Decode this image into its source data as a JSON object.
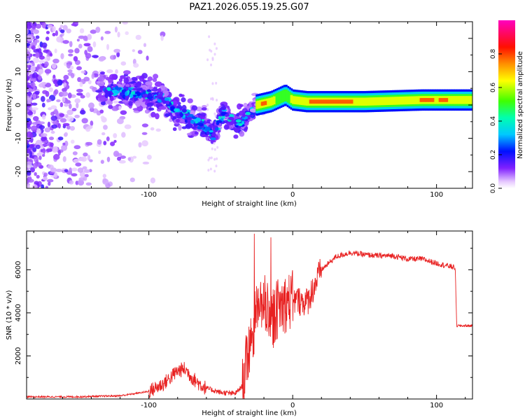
{
  "title": "PAZ1.2026.055.19.25.G07",
  "chart_data": [
    {
      "type": "heatmap",
      "title": "PAZ1.2026.055.19.25.G07",
      "xlabel": "Height of straight line (km)",
      "ylabel": "Frequency (Hz)",
      "xlim": [
        -185,
        125
      ],
      "ylim": [
        -25,
        25
      ],
      "xticks": [
        -100,
        0,
        100
      ],
      "yticks": [
        -20,
        -10,
        0,
        10,
        20
      ],
      "colorbar": {
        "label": "Normalized spectral amplitude",
        "range": [
          0,
          1
        ],
        "ticks": [
          0.0,
          0.2,
          0.4,
          0.6,
          0.8
        ],
        "colormap": "rainbow (violet-blue-cyan-green-yellow-red-magenta)"
      },
      "ridge": [
        {
          "x": -120,
          "freq": 4
        },
        {
          "x": -100,
          "freq": 3
        },
        {
          "x": -90,
          "freq": 2
        },
        {
          "x": -80,
          "freq": -2
        },
        {
          "x": -70,
          "freq": -4
        },
        {
          "x": -62,
          "freq": -6
        },
        {
          "x": -55,
          "freq": -9
        },
        {
          "x": -48,
          "freq": -2
        },
        {
          "x": -40,
          "freq": -6
        },
        {
          "x": -30,
          "freq": -3
        },
        {
          "x": -25,
          "freq": 0
        },
        {
          "x": -15,
          "freq": 1
        },
        {
          "x": -5,
          "freq": 3
        },
        {
          "x": 0,
          "freq": 1.5
        },
        {
          "x": 10,
          "freq": 1
        },
        {
          "x": 50,
          "freq": 1
        },
        {
          "x": 90,
          "freq": 1.5
        },
        {
          "x": 125,
          "freq": 1.5
        }
      ]
    },
    {
      "type": "line",
      "xlabel": "Height of straight line (km)",
      "ylabel": "SNR (10 * v/v)",
      "xlim": [
        -185,
        125
      ],
      "ylim": [
        0,
        7800
      ],
      "xticks": [
        -100,
        0,
        100
      ],
      "yticks": [
        2000,
        4000,
        6000
      ],
      "series": [
        {
          "name": "SNR",
          "color": "#e82020",
          "x": [
            -185,
            -150,
            -120,
            -100,
            -90,
            -80,
            -75,
            -70,
            -65,
            -60,
            -50,
            -40,
            -35,
            -30,
            -25,
            -20,
            -15,
            -10,
            0,
            10,
            20,
            30,
            40,
            50,
            60,
            70,
            80,
            90,
            100,
            110,
            113,
            114,
            125
          ],
          "y": [
            100,
            100,
            150,
            350,
            700,
            1300,
            1400,
            1000,
            700,
            500,
            300,
            250,
            600,
            2500,
            4000,
            4500,
            3500,
            4300,
            4600,
            4500,
            6000,
            6600,
            6800,
            6700,
            6650,
            6650,
            6500,
            6500,
            6300,
            6150,
            6100,
            3400,
            3400
          ]
        }
      ]
    }
  ]
}
